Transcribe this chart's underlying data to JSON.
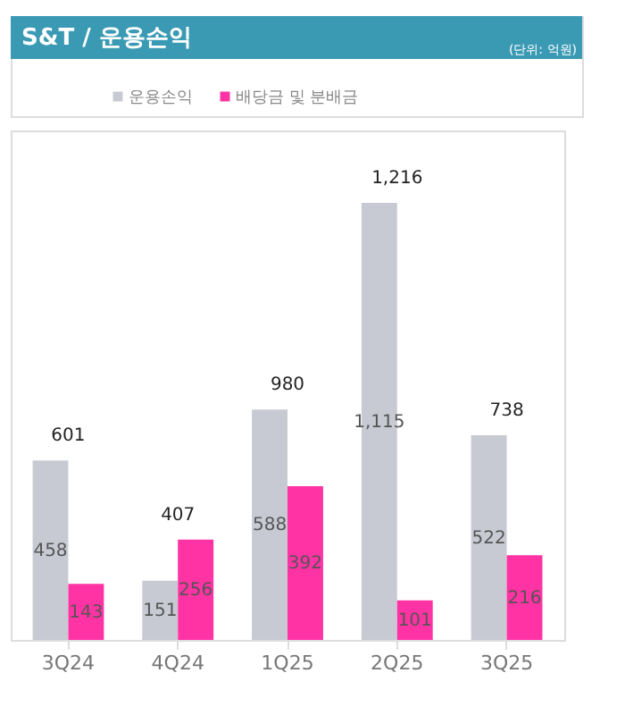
{
  "chart_data": {
    "type": "bar",
    "title": "S&T / 운용손익",
    "subtitle": "(단위: 억원)",
    "categories": [
      "3Q24",
      "4Q24",
      "1Q25",
      "2Q25",
      "3Q25"
    ],
    "series": [
      {
        "name": "운용손익",
        "color": "#c8cad3",
        "values": [
          458,
          151,
          588,
          1115,
          522
        ],
        "value_labels": [
          "458",
          "151",
          "588",
          "1,115",
          "522"
        ]
      },
      {
        "name": "배당금 및 분배금",
        "color": "#ff33a4",
        "values": [
          143,
          256,
          392,
          101,
          216
        ],
        "value_labels": [
          "143",
          "256",
          "392",
          "101",
          "216"
        ]
      }
    ],
    "totals": [
      "601",
      "407",
      "980",
      "1,216",
      "738"
    ],
    "ylim": [
      0,
      1300
    ],
    "tick_labels": "x",
    "data_labels": true,
    "legend": "top left",
    "grid": false
  }
}
